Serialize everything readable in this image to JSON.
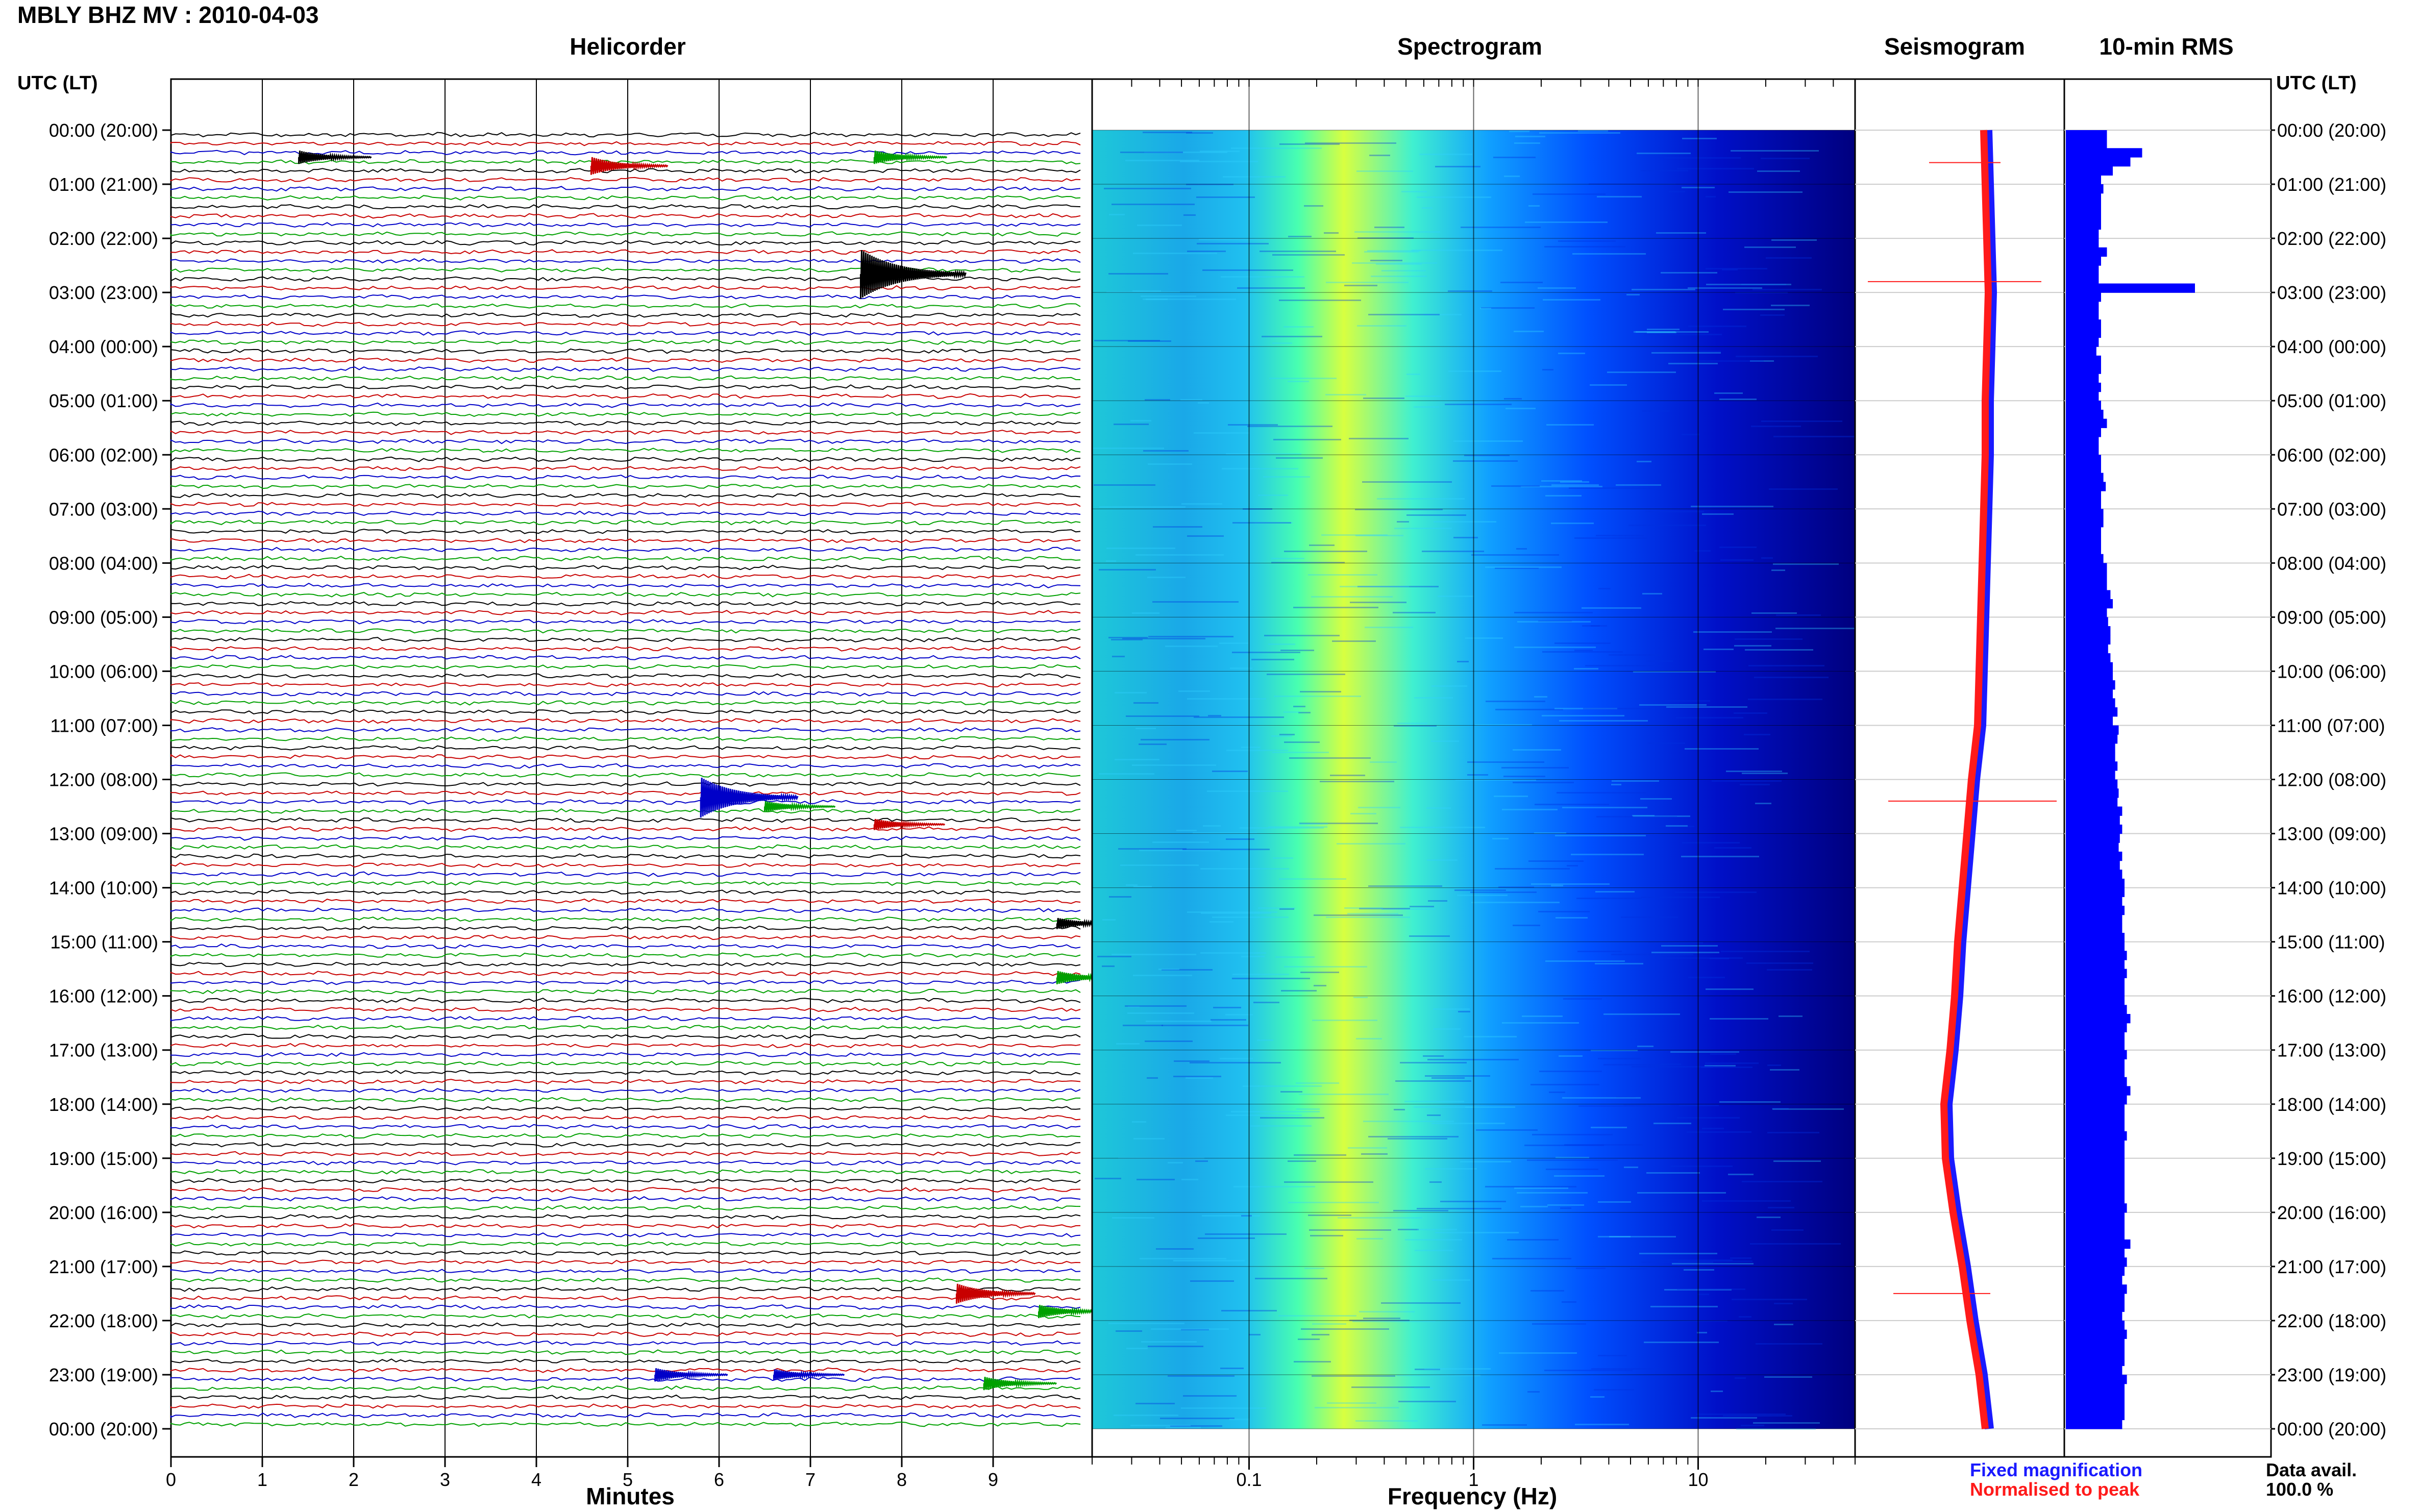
{
  "header": {
    "station_title": "MBLY BHZ MV : 2010-04-03"
  },
  "panels": {
    "helicorder": "Helicorder",
    "spectrogram": "Spectrogram",
    "seismogram": "Seismogram",
    "rms": "10-min RMS"
  },
  "time_axis": {
    "label": "UTC (LT)",
    "ticks": [
      "00:00 (20:00)",
      "01:00 (21:00)",
      "02:00 (22:00)",
      "03:00 (23:00)",
      "04:00 (00:00)",
      "05:00 (01:00)",
      "06:00 (02:00)",
      "07:00 (03:00)",
      "08:00 (04:00)",
      "09:00 (05:00)",
      "10:00 (06:00)",
      "11:00 (07:00)",
      "12:00 (08:00)",
      "13:00 (09:00)",
      "14:00 (10:00)",
      "15:00 (11:00)",
      "16:00 (12:00)",
      "17:00 (13:00)",
      "18:00 (14:00)",
      "19:00 (15:00)",
      "20:00 (16:00)",
      "21:00 (17:00)",
      "22:00 (18:00)",
      "23:00 (19:00)",
      "00:00 (20:00)"
    ]
  },
  "legend": {
    "fixed": "Fixed magnification",
    "normalised": "Normalised to peak",
    "fixed_color": "#1a1aff",
    "normalised_color": "#ff1a1a"
  },
  "availability": {
    "label": "Data avail.",
    "value": "100.0 %"
  },
  "chart_data": [
    {
      "type": "line",
      "title": "Helicorder",
      "xlabel": "Minutes",
      "ylabel": "UTC (LT)",
      "xlim": [
        0,
        10
      ],
      "x_ticks": [
        "0",
        "1",
        "2",
        "3",
        "4",
        "5",
        "6",
        "7",
        "8",
        "9"
      ],
      "rows_per_hour": 6,
      "trace_colors": [
        "#000000",
        "#c80000",
        "#0000c8",
        "#00a000"
      ],
      "grid": true,
      "events": [
        {
          "hour": 0.5,
          "minute": 1.4,
          "amplitude": 0.6,
          "color": "#000000"
        },
        {
          "hour": 0.66,
          "minute": 4.6,
          "amplitude": 0.8,
          "color": "#c80000"
        },
        {
          "hour": 0.5,
          "minute": 7.7,
          "amplitude": 0.6,
          "color": "#00a000"
        },
        {
          "hour": 2.66,
          "minute": 7.55,
          "amplitude": 2.2,
          "color": "#000000"
        },
        {
          "hour": 12.33,
          "minute": 5.8,
          "amplitude": 1.8,
          "color": "#0000c8"
        },
        {
          "hour": 12.5,
          "minute": 6.5,
          "amplitude": 0.5,
          "color": "#00a000"
        },
        {
          "hour": 12.83,
          "minute": 7.7,
          "amplitude": 0.5,
          "color": "#c80000"
        },
        {
          "hour": 14.66,
          "minute": 9.7,
          "amplitude": 0.5,
          "color": "#000000"
        },
        {
          "hour": 15.66,
          "minute": 9.7,
          "amplitude": 0.6,
          "color": "#00a000"
        },
        {
          "hour": 21.5,
          "minute": 8.6,
          "amplitude": 0.9,
          "color": "#c80000"
        },
        {
          "hour": 21.83,
          "minute": 9.5,
          "amplitude": 0.6,
          "color": "#00a000"
        },
        {
          "hour": 23.0,
          "minute": 5.3,
          "amplitude": 0.6,
          "color": "#0000c8"
        },
        {
          "hour": 23.0,
          "minute": 6.6,
          "amplitude": 0.5,
          "color": "#0000c8"
        },
        {
          "hour": 23.16,
          "minute": 8.9,
          "amplitude": 0.6,
          "color": "#00a000"
        }
      ]
    },
    {
      "type": "heatmap",
      "title": "Spectrogram",
      "xlabel": "Frequency (Hz)",
      "x_scale": "log",
      "xlim": [
        0.02,
        50
      ],
      "x_ticks": [
        "0.1",
        "1",
        "10"
      ],
      "colormap": [
        "#00007f",
        "#0000ff",
        "#00bfff",
        "#40ffbf",
        "#ffff00"
      ],
      "peak_frequency_hz": 0.25
    },
    {
      "type": "line",
      "title": "Seismogram",
      "series": [
        {
          "name": "Fixed magnification",
          "color": "#1a1aff",
          "values": [
            0.4,
            0.45,
            0.5,
            0.55,
            0.5,
            0.45,
            0.45,
            0.4,
            0.35,
            0.3,
            0.25,
            0.2,
            0.0,
            -0.15,
            -0.3,
            -0.45,
            -0.55,
            -0.7,
            -0.9,
            -0.85,
            -0.6,
            -0.3,
            -0.05,
            0.25,
            0.45
          ]
        },
        {
          "name": "Normalised to peak",
          "color": "#ff1a1a",
          "values": [
            0.4,
            0.45,
            0.5,
            0.55,
            0.5,
            0.45,
            0.45,
            0.4,
            0.35,
            0.3,
            0.25,
            0.2,
            0.0,
            -0.15,
            -0.3,
            -0.45,
            -0.55,
            -0.7,
            -0.9,
            -0.85,
            -0.6,
            -0.3,
            -0.05,
            0.25,
            0.45
          ]
        }
      ]
    },
    {
      "type": "bar",
      "title": "10-min RMS",
      "orientation": "horizontal",
      "color": "#0000ff",
      "values": [
        0.35,
        0.35,
        0.65,
        0.55,
        0.4,
        0.3,
        0.32,
        0.3,
        0.3,
        0.3,
        0.3,
        0.28,
        0.28,
        0.35,
        0.3,
        0.28,
        0.28,
        1.1,
        0.3,
        0.28,
        0.28,
        0.3,
        0.3,
        0.28,
        0.26,
        0.3,
        0.3,
        0.28,
        0.3,
        0.28,
        0.3,
        0.32,
        0.35,
        0.3,
        0.28,
        0.28,
        0.3,
        0.3,
        0.32,
        0.34,
        0.3,
        0.3,
        0.32,
        0.32,
        0.3,
        0.3,
        0.3,
        0.32,
        0.35,
        0.35,
        0.35,
        0.38,
        0.4,
        0.35,
        0.36,
        0.38,
        0.38,
        0.36,
        0.38,
        0.4,
        0.4,
        0.42,
        0.4,
        0.42,
        0.44,
        0.4,
        0.45,
        0.44,
        0.42,
        0.42,
        0.44,
        0.42,
        0.44,
        0.45,
        0.44,
        0.48,
        0.46,
        0.48,
        0.46,
        0.45,
        0.48,
        0.46,
        0.48,
        0.5,
        0.5,
        0.48,
        0.5,
        0.48,
        0.48,
        0.5,
        0.5,
        0.52,
        0.5,
        0.52,
        0.5,
        0.5,
        0.5,
        0.52,
        0.55,
        0.52,
        0.5,
        0.5,
        0.52,
        0.5,
        0.5,
        0.52,
        0.55,
        0.52,
        0.5,
        0.5,
        0.5,
        0.52,
        0.5,
        0.5,
        0.5,
        0.5,
        0.5,
        0.5,
        0.5,
        0.52,
        0.5,
        0.5,
        0.5,
        0.55,
        0.5,
        0.52,
        0.5,
        0.48,
        0.52,
        0.5,
        0.5,
        0.48,
        0.5,
        0.52,
        0.5,
        0.5,
        0.5,
        0.48,
        0.52,
        0.5,
        0.5,
        0.5,
        0.5,
        0.48
      ]
    }
  ]
}
